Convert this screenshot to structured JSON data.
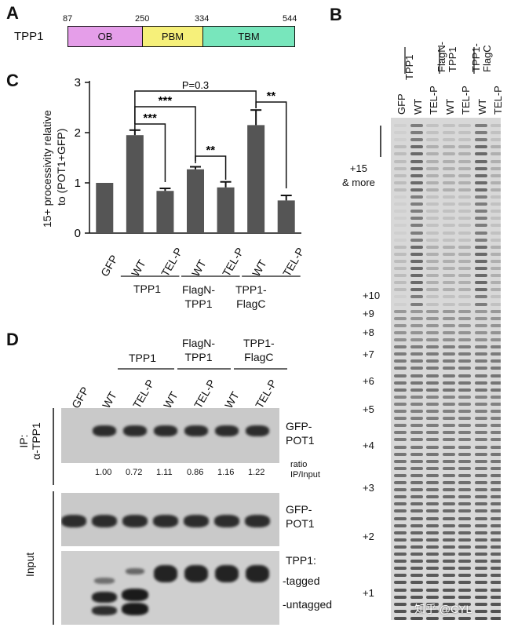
{
  "panel_labels": {
    "a": "A",
    "b": "B",
    "c": "C",
    "d": "D"
  },
  "panel_a": {
    "protein_label": "TPP1",
    "domains": [
      {
        "name": "OB",
        "start": 87,
        "end": 250,
        "color": "#e59ee9"
      },
      {
        "name": "PBM",
        "start": 250,
        "end": 334,
        "color": "#f6f07a"
      },
      {
        "name": "TBM",
        "start": 334,
        "end": 544,
        "color": "#78e6bc"
      }
    ],
    "positions": [
      "87",
      "250",
      "334",
      "544"
    ]
  },
  "panel_c": {
    "ylabel_line1": "15+ processivity relative",
    "ylabel_line2": "to (POT1+GFP)",
    "ylim": [
      0,
      3
    ],
    "ticks": [
      "0",
      "1",
      "2",
      "3"
    ],
    "categories": [
      "GFP",
      "WT",
      "TEL-P",
      "WT",
      "TEL-P",
      "WT",
      "TEL-P"
    ],
    "groups": [
      "TPP1",
      "FlagN-\nTPP1",
      "TPP1-\nFlagC"
    ],
    "sig": {
      "p_text": "P=0.3",
      "s3": "***",
      "s2": "**"
    }
  },
  "chart_data": {
    "type": "bar",
    "categories": [
      "GFP",
      "WT",
      "TEL-P",
      "WT",
      "TEL-P",
      "WT",
      "TEL-P"
    ],
    "values": [
      1.0,
      1.95,
      0.84,
      1.27,
      0.91,
      2.15,
      0.65
    ],
    "errors": [
      0,
      0.1,
      0.05,
      0.05,
      0.11,
      0.3,
      0.1
    ],
    "ylabel": "15+ processivity relative to (POT1+GFP)",
    "ylim": [
      0,
      3
    ],
    "groups": [
      {
        "label": "TPP1",
        "members": [
          1,
          2
        ]
      },
      {
        "label": "FlagN-TPP1",
        "members": [
          3,
          4
        ]
      },
      {
        "label": "TPP1-FlagC",
        "members": [
          5,
          6
        ]
      }
    ],
    "annotations": [
      "P=0.3",
      "***",
      "***",
      "**",
      "**"
    ]
  },
  "panel_b": {
    "lane_labels": [
      "GFP",
      "WT",
      "TEL-P",
      "WT",
      "TEL-P",
      "WT",
      "TEL-P"
    ],
    "group_labels": [
      "TPP1",
      "FlagN-\nTPP1",
      "TPP1-\nFlagC"
    ],
    "bracket_label": "+15\n& more",
    "markers": [
      "+10",
      "+9",
      "+8",
      "+7",
      "+6",
      "+5",
      "+4",
      "+3",
      "+2",
      "+1"
    ]
  },
  "panel_d": {
    "group_labels": [
      "TPP1",
      "FlagN-\nTPP1",
      "TPP1-\nFlagC"
    ],
    "lane_labels": [
      "GFP",
      "WT",
      "TEL-P",
      "WT",
      "TEL-P",
      "WT",
      "TEL-P"
    ],
    "ip_label": "IP:\nα-TPP1",
    "input_label": "Input",
    "ratios": [
      "1.00",
      "0.72",
      "1.11",
      "0.86",
      "1.16",
      "1.22"
    ],
    "ratio_label": "ratio\nIP/Input",
    "band_label_1": "GFP-\nPOT1",
    "band_label_2": "GFP-\nPOT1",
    "tpp1_label": "TPP1:",
    "tagged_label": "-tagged",
    "untagged_label": "-untagged"
  },
  "watermark": "知乎 @CYL"
}
